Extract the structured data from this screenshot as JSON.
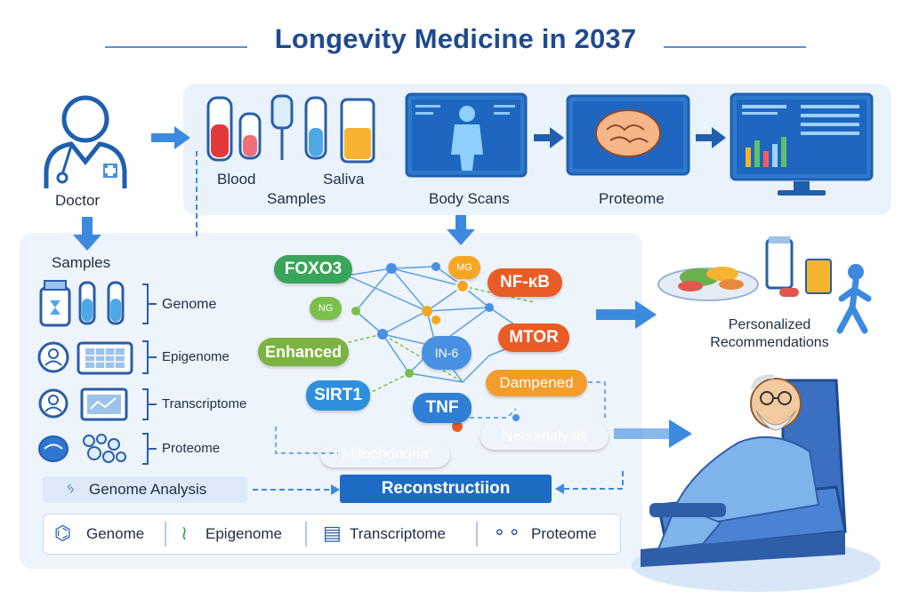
{
  "title": "Longevity Medicine in 2037",
  "doctor": {
    "label": "Doctor",
    "icon": "doctor-icon"
  },
  "top_panel": {
    "blood": "Blood",
    "saliva": "Saliva",
    "samples": "Samples",
    "body_scans": "Body Scans",
    "proteome": "Proteome"
  },
  "samples_panel": {
    "heading": "Samples",
    "rows": [
      {
        "label": "Genome",
        "icon": "vials-icon"
      },
      {
        "label": "Epigenome",
        "icon": "epigenome-card-icon"
      },
      {
        "label": "Transcriptome",
        "icon": "transcriptome-card-icon"
      },
      {
        "label": "Proteome",
        "icon": "proteome-cells-icon"
      }
    ]
  },
  "network": {
    "nodes": [
      {
        "id": "foxo3",
        "label": "FOXO3",
        "color": "#3aa55a"
      },
      {
        "id": "mg",
        "label": "MG",
        "color": "#f6a623"
      },
      {
        "id": "nfkb",
        "label": "NF-κB",
        "color": "#ea5b26"
      },
      {
        "id": "ng",
        "label": "NG",
        "color": "#7cbf4a"
      },
      {
        "id": "enhanced",
        "label": "Enhanced",
        "color": "#7cb342"
      },
      {
        "id": "in6",
        "label": "IN-6",
        "color": "#4a90e2"
      },
      {
        "id": "mtor",
        "label": "MTOR",
        "color": "#ea5b26"
      },
      {
        "id": "dampened",
        "label": "Dampened",
        "color": "#f39c2c"
      },
      {
        "id": "sirt1",
        "label": "SIRT1",
        "color": "#2f8fde"
      },
      {
        "id": "tnf",
        "label": "TNF",
        "color": "#2f7fd6"
      },
      {
        "id": "netx",
        "label": "Netxanalysis",
        "color": "#1f5fae"
      },
      {
        "id": "mito",
        "label": "Mitochondria",
        "color": "#7cb342"
      }
    ]
  },
  "genome_analysis": "Genome Analysis",
  "reconstruction": "Reconstructiion",
  "legend": [
    {
      "label": "Genome",
      "icon": "dna-icon"
    },
    {
      "label": "Epigenome",
      "icon": "epigenome-strand-icon"
    },
    {
      "label": "Transcriptome",
      "icon": "transcript-icon"
    },
    {
      "label": "Proteome",
      "icon": "protein-icon"
    }
  ],
  "recommendations": "Personalized Recommendations",
  "colors": {
    "primary": "#1e6bc4",
    "title": "#1f4a8f",
    "panel": "#eaf2fc"
  }
}
